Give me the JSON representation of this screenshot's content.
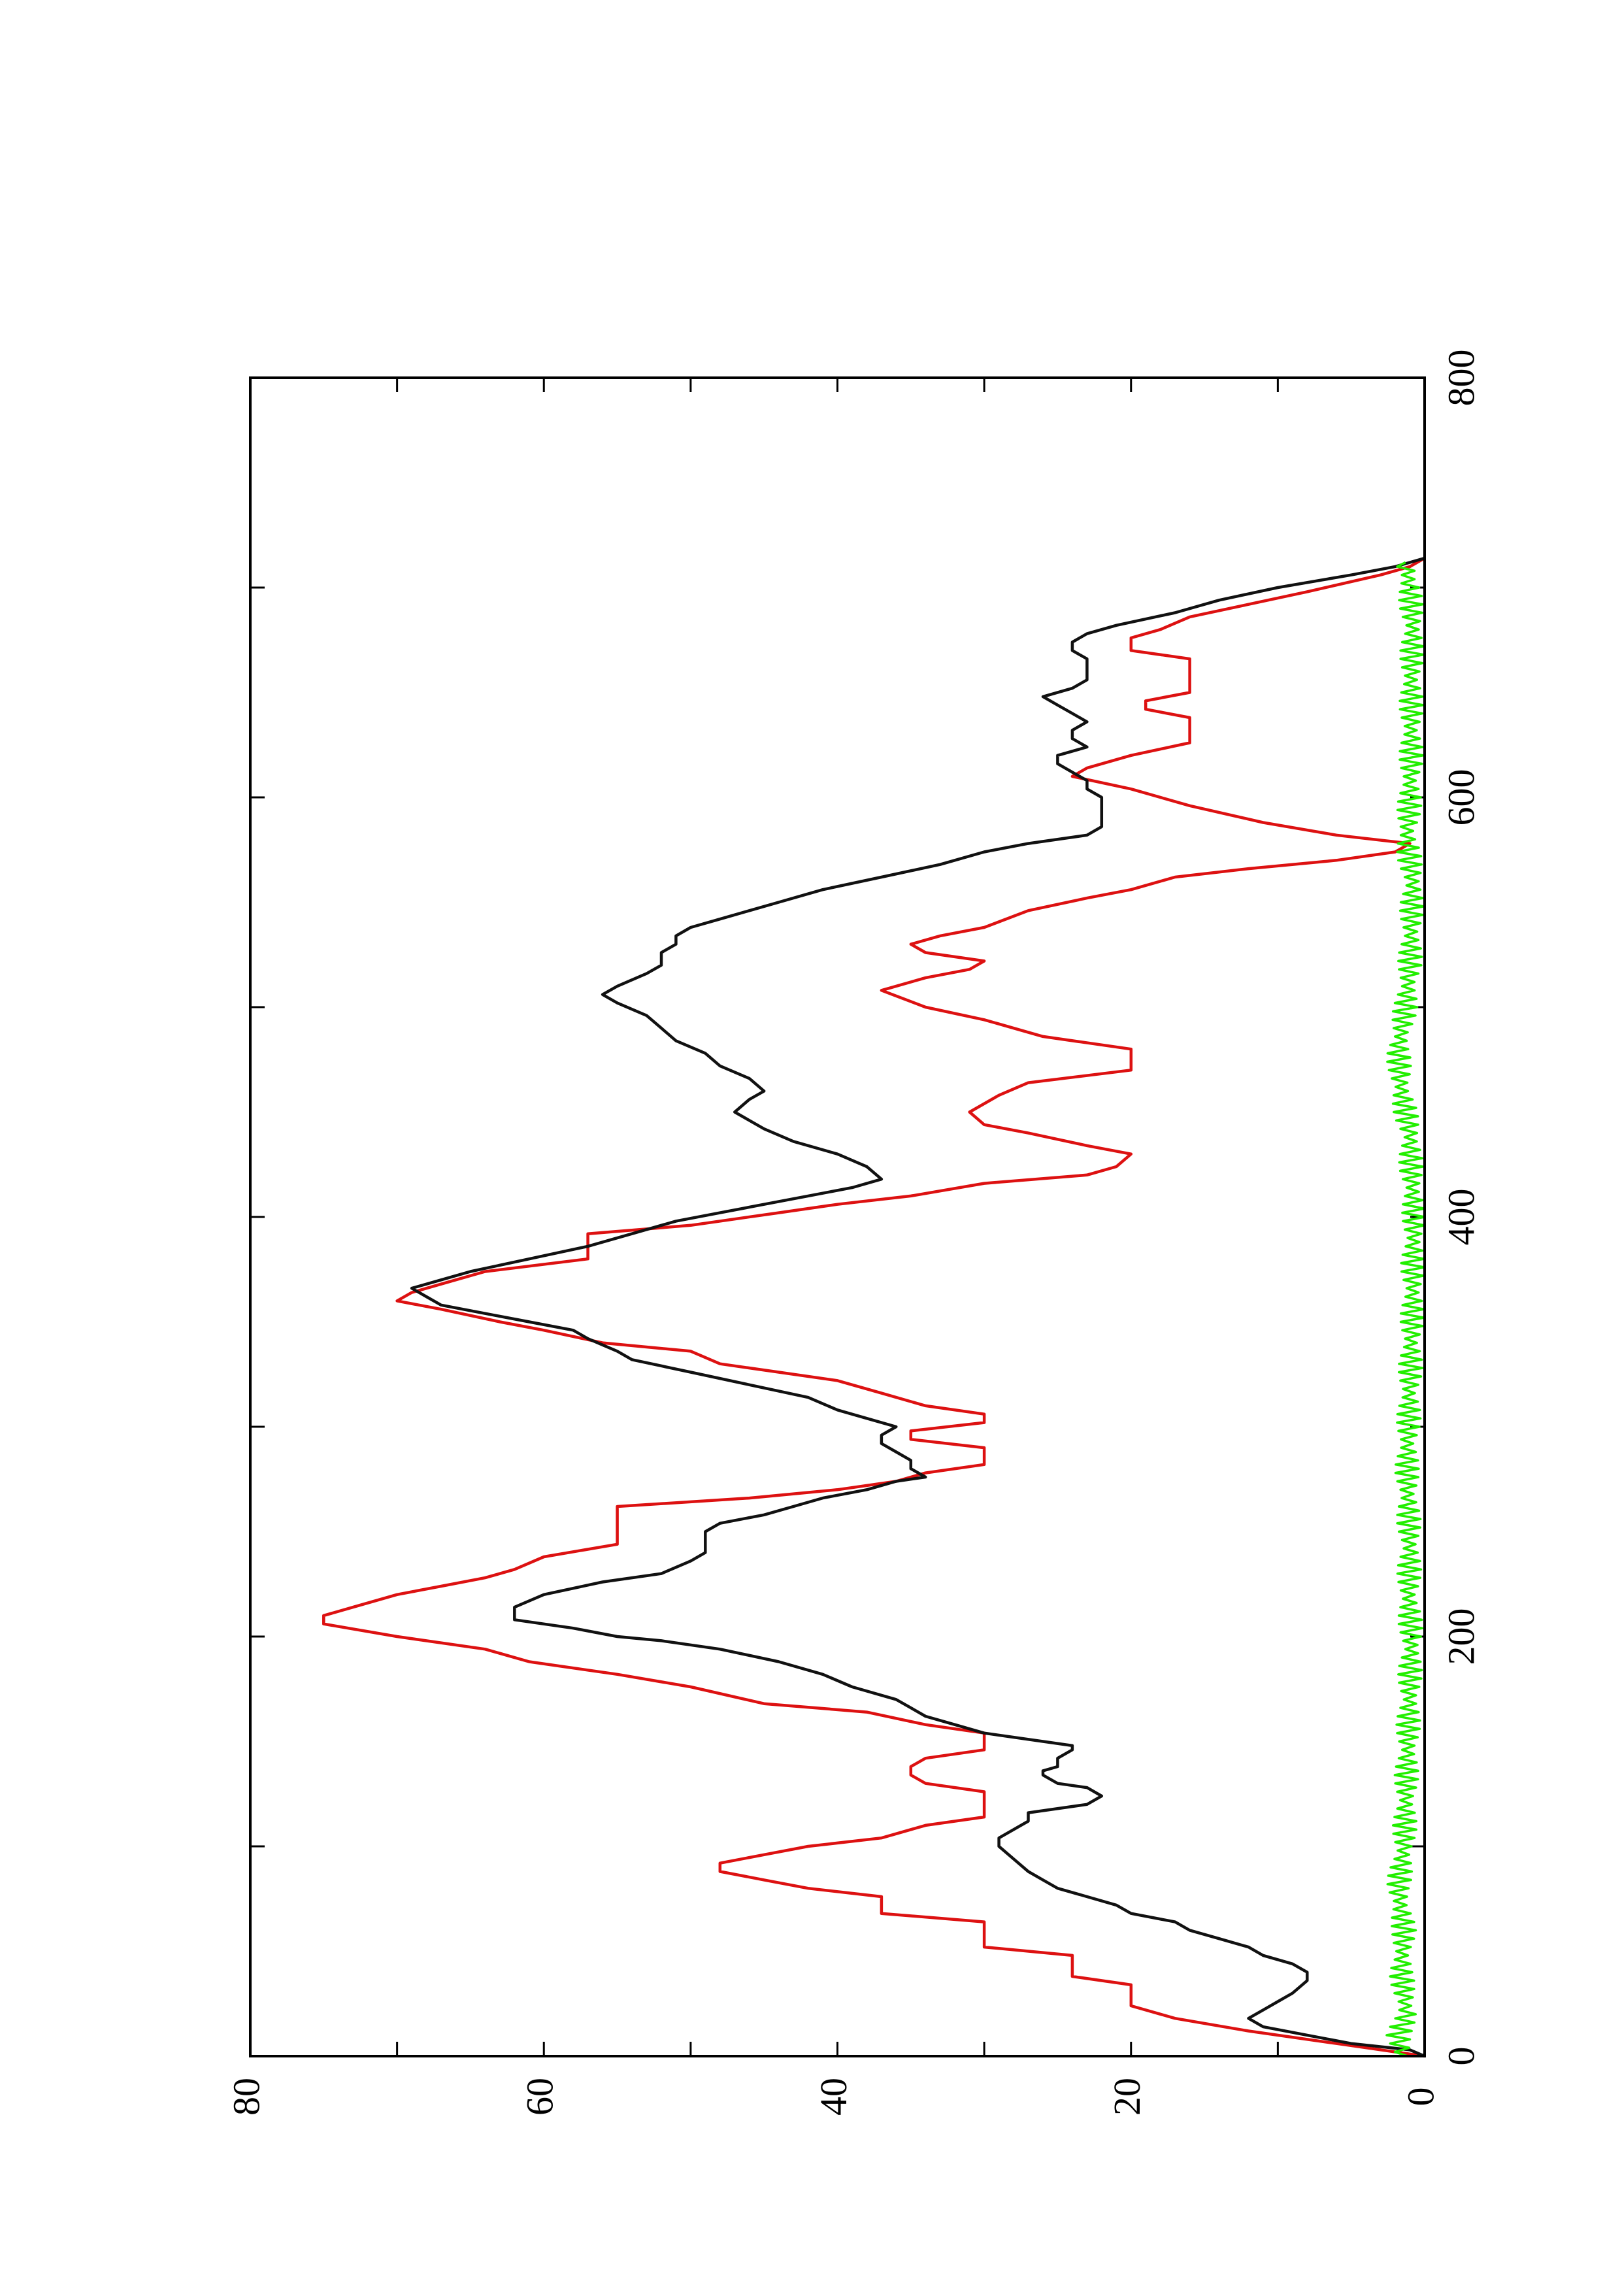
{
  "chart_data": {
    "type": "line",
    "orientation": "rotated-90-ccw",
    "title": "",
    "xlabel": "",
    "ylabel": "",
    "xlim": [
      0,
      800
    ],
    "ylim": [
      0,
      80
    ],
    "x_ticks": [
      0,
      200,
      400,
      600,
      800
    ],
    "x_tick_labels": [
      "0",
      "200",
      "400",
      "600",
      "800"
    ],
    "x_minor_ticks": [
      100,
      300,
      500,
      700
    ],
    "y_ticks": [
      0,
      20,
      40,
      60,
      80
    ],
    "y_tick_labels": [
      "0",
      "20",
      "40",
      "60",
      "80"
    ],
    "y_minor_ticks": [
      10,
      30,
      50,
      70
    ],
    "grid": false,
    "legend": "none",
    "series": [
      {
        "color": "#dd1111",
        "step": true,
        "points": [
          [
            0,
            0
          ],
          [
            6,
            6
          ],
          [
            12,
            12
          ],
          [
            18,
            17
          ],
          [
            24,
            20
          ],
          [
            34,
            20
          ],
          [
            38,
            24
          ],
          [
            48,
            24
          ],
          [
            52,
            30
          ],
          [
            64,
            30
          ],
          [
            68,
            37
          ],
          [
            76,
            37
          ],
          [
            80,
            42
          ],
          [
            84,
            45
          ],
          [
            88,
            48
          ],
          [
            92,
            48
          ],
          [
            96,
            45
          ],
          [
            100,
            42
          ],
          [
            104,
            37
          ],
          [
            110,
            34
          ],
          [
            114,
            30
          ],
          [
            126,
            30
          ],
          [
            130,
            34
          ],
          [
            134,
            35
          ],
          [
            138,
            35
          ],
          [
            142,
            34
          ],
          [
            146,
            30
          ],
          [
            154,
            30
          ],
          [
            158,
            34
          ],
          [
            164,
            38
          ],
          [
            168,
            45
          ],
          [
            176,
            50
          ],
          [
            182,
            55
          ],
          [
            188,
            61
          ],
          [
            194,
            64
          ],
          [
            200,
            70
          ],
          [
            206,
            75
          ],
          [
            210,
            75
          ],
          [
            214,
            73
          ],
          [
            220,
            70
          ],
          [
            224,
            67
          ],
          [
            228,
            64
          ],
          [
            232,
            62
          ],
          [
            238,
            60
          ],
          [
            244,
            55
          ],
          [
            262,
            55
          ],
          [
            266,
            46
          ],
          [
            270,
            40
          ],
          [
            274,
            36
          ],
          [
            278,
            34
          ],
          [
            282,
            30
          ],
          [
            290,
            30
          ],
          [
            294,
            35
          ],
          [
            298,
            35
          ],
          [
            302,
            30
          ],
          [
            306,
            30
          ],
          [
            310,
            34
          ],
          [
            316,
            37
          ],
          [
            322,
            40
          ],
          [
            326,
            44
          ],
          [
            330,
            48
          ],
          [
            336,
            50
          ],
          [
            340,
            56
          ],
          [
            346,
            60
          ],
          [
            350,
            63
          ],
          [
            356,
            67
          ],
          [
            360,
            70
          ],
          [
            364,
            69
          ],
          [
            368,
            67
          ],
          [
            374,
            64
          ],
          [
            380,
            57
          ],
          [
            392,
            57
          ],
          [
            396,
            50
          ],
          [
            402,
            44
          ],
          [
            406,
            40
          ],
          [
            410,
            35
          ],
          [
            416,
            30
          ],
          [
            420,
            23
          ],
          [
            424,
            21
          ],
          [
            430,
            20
          ],
          [
            434,
            23
          ],
          [
            440,
            27
          ],
          [
            444,
            30
          ],
          [
            450,
            31
          ],
          [
            458,
            29
          ],
          [
            464,
            27
          ],
          [
            470,
            20
          ],
          [
            480,
            20
          ],
          [
            486,
            26
          ],
          [
            494,
            30
          ],
          [
            500,
            34
          ],
          [
            508,
            37
          ],
          [
            514,
            34
          ],
          [
            518,
            31
          ],
          [
            522,
            30
          ],
          [
            526,
            34
          ],
          [
            530,
            35
          ],
          [
            534,
            33
          ],
          [
            538,
            30
          ],
          [
            546,
            27
          ],
          [
            552,
            23
          ],
          [
            556,
            20
          ],
          [
            562,
            17
          ],
          [
            566,
            12
          ],
          [
            570,
            6
          ],
          [
            574,
            2
          ],
          [
            578,
            1
          ],
          [
            582,
            6
          ],
          [
            588,
            11
          ],
          [
            596,
            16
          ],
          [
            604,
            20
          ],
          [
            610,
            24
          ],
          [
            614,
            23
          ],
          [
            620,
            20
          ],
          [
            626,
            16
          ],
          [
            634,
            16
          ],
          [
            638,
            16
          ],
          [
            642,
            19
          ],
          [
            646,
            19
          ],
          [
            650,
            16
          ],
          [
            666,
            16
          ],
          [
            670,
            20
          ],
          [
            676,
            20
          ],
          [
            680,
            18
          ],
          [
            686,
            16
          ],
          [
            692,
            12
          ],
          [
            698,
            8
          ],
          [
            706,
            3
          ],
          [
            710,
            1
          ],
          [
            714,
            0
          ]
        ]
      },
      {
        "color": "#111111",
        "step": false,
        "points": [
          [
            0,
            0
          ],
          [
            3,
            1
          ],
          [
            6,
            5
          ],
          [
            10,
            8
          ],
          [
            14,
            11
          ],
          [
            18,
            12
          ],
          [
            22,
            11
          ],
          [
            26,
            10
          ],
          [
            30,
            9
          ],
          [
            36,
            8
          ],
          [
            40,
            8
          ],
          [
            44,
            9
          ],
          [
            48,
            11
          ],
          [
            52,
            12
          ],
          [
            56,
            14
          ],
          [
            60,
            16
          ],
          [
            64,
            17
          ],
          [
            68,
            20
          ],
          [
            72,
            21
          ],
          [
            76,
            23
          ],
          [
            80,
            25
          ],
          [
            84,
            26
          ],
          [
            88,
            27
          ],
          [
            94,
            28
          ],
          [
            100,
            29
          ],
          [
            104,
            29
          ],
          [
            108,
            28
          ],
          [
            112,
            27
          ],
          [
            116,
            27
          ],
          [
            120,
            23
          ],
          [
            124,
            22
          ],
          [
            128,
            23
          ],
          [
            130,
            25
          ],
          [
            134,
            26
          ],
          [
            136,
            26
          ],
          [
            138,
            25
          ],
          [
            142,
            25
          ],
          [
            146,
            24
          ],
          [
            148,
            24
          ],
          [
            150,
            26
          ],
          [
            154,
            30
          ],
          [
            158,
            32
          ],
          [
            162,
            34
          ],
          [
            166,
            35
          ],
          [
            170,
            36
          ],
          [
            176,
            39
          ],
          [
            182,
            41
          ],
          [
            188,
            44
          ],
          [
            194,
            48
          ],
          [
            198,
            52
          ],
          [
            200,
            55
          ],
          [
            204,
            58
          ],
          [
            208,
            62
          ],
          [
            214,
            62
          ],
          [
            220,
            60
          ],
          [
            226,
            56
          ],
          [
            230,
            52
          ],
          [
            236,
            50
          ],
          [
            240,
            49
          ],
          [
            246,
            49
          ],
          [
            250,
            49
          ],
          [
            254,
            48
          ],
          [
            258,
            45
          ],
          [
            262,
            43
          ],
          [
            266,
            41
          ],
          [
            270,
            38
          ],
          [
            274,
            36
          ],
          [
            276,
            34
          ],
          [
            280,
            35
          ],
          [
            284,
            35
          ],
          [
            288,
            36
          ],
          [
            292,
            37
          ],
          [
            296,
            37
          ],
          [
            300,
            36
          ],
          [
            304,
            38
          ],
          [
            308,
            40
          ],
          [
            314,
            42
          ],
          [
            320,
            46
          ],
          [
            326,
            50
          ],
          [
            332,
            54
          ],
          [
            336,
            55
          ],
          [
            342,
            57
          ],
          [
            346,
            58
          ],
          [
            350,
            61
          ],
          [
            354,
            64
          ],
          [
            358,
            67
          ],
          [
            362,
            68
          ],
          [
            366,
            69
          ],
          [
            370,
            67
          ],
          [
            374,
            65
          ],
          [
            380,
            61
          ],
          [
            386,
            57
          ],
          [
            392,
            54
          ],
          [
            398,
            51
          ],
          [
            402,
            48
          ],
          [
            406,
            45
          ],
          [
            410,
            42
          ],
          [
            414,
            39
          ],
          [
            418,
            37
          ],
          [
            424,
            38
          ],
          [
            430,
            40
          ],
          [
            436,
            43
          ],
          [
            442,
            45
          ],
          [
            446,
            46
          ],
          [
            450,
            47
          ],
          [
            456,
            46
          ],
          [
            460,
            45
          ],
          [
            466,
            46
          ],
          [
            472,
            48
          ],
          [
            478,
            49
          ],
          [
            484,
            51
          ],
          [
            490,
            52
          ],
          [
            496,
            53
          ],
          [
            502,
            55
          ],
          [
            506,
            56
          ],
          [
            510,
            55
          ],
          [
            516,
            53
          ],
          [
            520,
            52
          ],
          [
            526,
            52
          ],
          [
            530,
            51
          ],
          [
            534,
            51
          ],
          [
            538,
            50
          ],
          [
            542,
            48
          ],
          [
            546,
            46
          ],
          [
            550,
            44
          ],
          [
            556,
            41
          ],
          [
            562,
            37
          ],
          [
            568,
            33
          ],
          [
            574,
            30
          ],
          [
            578,
            27
          ],
          [
            582,
            23
          ],
          [
            586,
            22
          ],
          [
            590,
            22
          ],
          [
            596,
            22
          ],
          [
            600,
            22
          ],
          [
            604,
            23
          ],
          [
            608,
            23
          ],
          [
            612,
            24
          ],
          [
            616,
            25
          ],
          [
            620,
            25
          ],
          [
            624,
            23
          ],
          [
            628,
            24
          ],
          [
            632,
            24
          ],
          [
            636,
            23
          ],
          [
            640,
            24
          ],
          [
            644,
            25
          ],
          [
            648,
            26
          ],
          [
            652,
            24
          ],
          [
            656,
            23
          ],
          [
            660,
            23
          ],
          [
            666,
            23
          ],
          [
            670,
            24
          ],
          [
            674,
            24
          ],
          [
            678,
            23
          ],
          [
            682,
            21
          ],
          [
            688,
            17
          ],
          [
            694,
            14
          ],
          [
            700,
            10
          ],
          [
            706,
            5
          ],
          [
            710,
            2
          ],
          [
            714,
            0
          ]
        ]
      },
      {
        "color": "#22ee00",
        "step": false,
        "noise": "zigzag",
        "points": [
          [
            0,
            1.5
          ],
          [
            10,
            1.8
          ],
          [
            20,
            1.2
          ],
          [
            40,
            1.6
          ],
          [
            60,
            1.4
          ],
          [
            80,
            1.8
          ],
          [
            100,
            1.4
          ],
          [
            120,
            1.3
          ],
          [
            140,
            1.2
          ],
          [
            160,
            1.1
          ],
          [
            180,
            1.0
          ],
          [
            200,
            0.9
          ],
          [
            220,
            1.1
          ],
          [
            240,
            1.0
          ],
          [
            260,
            1.1
          ],
          [
            280,
            1.2
          ],
          [
            300,
            1.1
          ],
          [
            320,
            1.0
          ],
          [
            340,
            0.9
          ],
          [
            360,
            0.8
          ],
          [
            380,
            0.8
          ],
          [
            400,
            0.7
          ],
          [
            420,
            0.9
          ],
          [
            440,
            1.0
          ],
          [
            460,
            1.6
          ],
          [
            480,
            1.8
          ],
          [
            500,
            1.3
          ],
          [
            520,
            1.0
          ],
          [
            540,
            0.9
          ],
          [
            560,
            0.8
          ],
          [
            580,
            1.2
          ],
          [
            600,
            1.0
          ],
          [
            620,
            0.9
          ],
          [
            640,
            0.9
          ],
          [
            660,
            0.9
          ],
          [
            680,
            0.8
          ],
          [
            700,
            1.0
          ],
          [
            712,
            1.3
          ]
        ]
      }
    ]
  }
}
